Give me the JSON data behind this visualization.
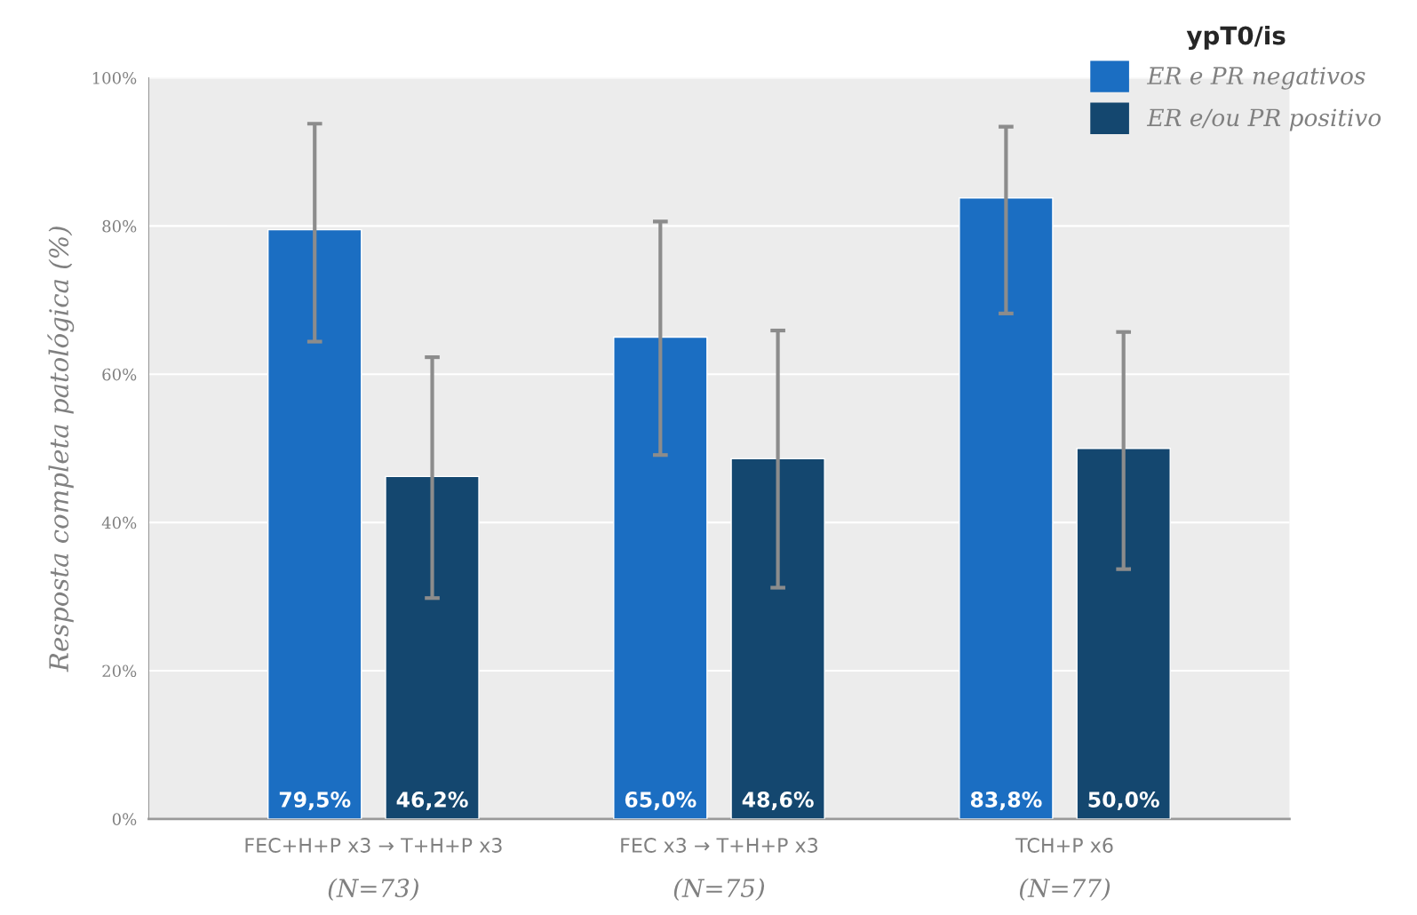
{
  "chart_data": {
    "type": "bar",
    "ylabel": "Resposta completa patológica (%)",
    "legend_title": "ypT0/is",
    "categories": [
      "FEC+H+P x3 → T+H+P x3\n(N=73)",
      "FEC x3 → T+H+P x3\n(N=75)",
      "TCH+P x6\n(N=77)"
    ],
    "series": [
      {
        "name": "ER e PR negativos",
        "color": "#1b6ec2",
        "values": [
          79.5,
          65.0,
          83.8
        ],
        "errors": [
          [
            64.4,
            93.8
          ],
          [
            49.1,
            80.6
          ],
          [
            68.2,
            93.4
          ]
        ],
        "value_labels": [
          "79,5%",
          "65,0%",
          "83,8%"
        ]
      },
      {
        "name": "ER e/ou PR positivo",
        "color": "#14476f",
        "values": [
          46.2,
          48.6,
          50.0
        ],
        "errors": [
          [
            29.8,
            62.3
          ],
          [
            31.2,
            65.9
          ],
          [
            33.7,
            65.7
          ]
        ],
        "value_labels": [
          "46,2%",
          "48,6%",
          "50,0%"
        ]
      }
    ],
    "ylim": [
      0,
      100
    ],
    "yticks": [
      {
        "value": 0,
        "label": "0%"
      },
      {
        "value": 20,
        "label": "20%"
      },
      {
        "value": 40,
        "label": "40%"
      },
      {
        "value": 60,
        "label": "60%"
      },
      {
        "value": 80,
        "label": "80%"
      },
      {
        "value": 100,
        "label": "100%"
      }
    ],
    "grid": "y",
    "legend": "top right"
  }
}
